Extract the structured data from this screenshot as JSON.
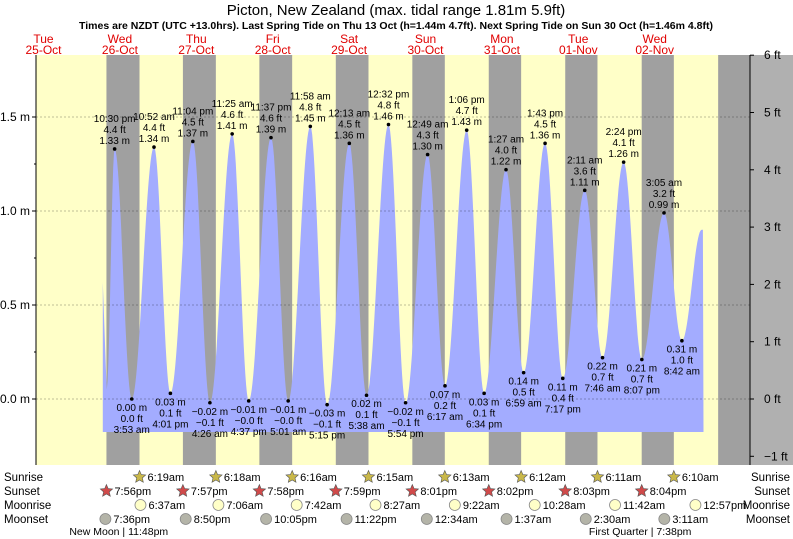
{
  "chart_data": {
    "type": "area",
    "title": "Picton, New Zealand (max. tidal range 1.81m 5.9ft)",
    "subtitle": "Times are NZDT (UTC +13.0hrs). Last Spring Tide on Thu 13 Oct (h=1.44m 4.7ft). Next Spring Tide on Sun 30 Oct (h=1.46m 4.8ft)",
    "days": [
      {
        "dow": "Tue",
        "date": "25-Oct"
      },
      {
        "dow": "Wed",
        "date": "26-Oct"
      },
      {
        "dow": "Thu",
        "date": "27-Oct"
      },
      {
        "dow": "Fri",
        "date": "28-Oct"
      },
      {
        "dow": "Sat",
        "date": "29-Oct"
      },
      {
        "dow": "Sun",
        "date": "30-Oct"
      },
      {
        "dow": "Mon",
        "date": "31-Oct"
      },
      {
        "dow": "Tue",
        "date": "01-Nov"
      },
      {
        "dow": "Wed",
        "date": "02-Nov"
      }
    ],
    "y_left": {
      "ticks": [
        "1.5 m",
        "1.0 m",
        "0.5 m",
        "0.0 m"
      ],
      "values": [
        1.5,
        1.0,
        0.5,
        0.0
      ],
      "ylim": [
        -0.31,
        1.81
      ]
    },
    "y_right": {
      "ticks": [
        "6 ft",
        "5 ft",
        "4 ft",
        "3 ft",
        "2 ft",
        "1 ft",
        "0 ft",
        "−1 ft"
      ],
      "values": [
        6,
        5,
        4,
        3,
        2,
        1,
        0,
        -1
      ]
    },
    "x_range_hours": [
      0,
      216
    ],
    "tides": [
      {
        "type": "high",
        "t": 22.5,
        "time": "10:30 pm",
        "ft": "4.4 ft",
        "m": "1.33 m",
        "h": 1.33
      },
      {
        "type": "low",
        "t": 27.88,
        "time": "3:53 am",
        "ft": "0.0 ft",
        "m": "0.00 m",
        "h": 0.0
      },
      {
        "type": "high",
        "t": 34.87,
        "time": "10:52 am",
        "ft": "4.4 ft",
        "m": "1.34 m",
        "h": 1.34
      },
      {
        "type": "low",
        "t": 40.02,
        "time": "4:01 pm",
        "ft": "0.1 ft",
        "m": "0.03 m",
        "h": 0.03
      },
      {
        "type": "high",
        "t": 47.07,
        "time": "11:04 pm",
        "ft": "4.5 ft",
        "m": "1.37 m",
        "h": 1.37
      },
      {
        "type": "low",
        "t": 52.43,
        "time": "4:26 am",
        "ft": "−0.1 ft",
        "m": "−0.02 m",
        "h": -0.02
      },
      {
        "type": "high",
        "t": 59.42,
        "time": "11:25 am",
        "ft": "4.6 ft",
        "m": "1.41 m",
        "h": 1.41
      },
      {
        "type": "low",
        "t": 64.62,
        "time": "4:37 pm",
        "ft": "−0.0 ft",
        "m": "−0.01 m",
        "h": -0.01
      },
      {
        "type": "high",
        "t": 71.62,
        "time": "11:37 pm",
        "ft": "4.6 ft",
        "m": "1.39 m",
        "h": 1.39
      },
      {
        "type": "low",
        "t": 77.02,
        "time": "5:01 am",
        "ft": "−0.0 ft",
        "m": "−0.01 m",
        "h": -0.01
      },
      {
        "type": "high",
        "t": 83.97,
        "time": "11:58 am",
        "ft": "4.8 ft",
        "m": "1.45 m",
        "h": 1.45
      },
      {
        "type": "low",
        "t": 89.25,
        "time": "5:15 pm",
        "ft": "−0.1 ft",
        "m": "−0.03 m",
        "h": -0.03
      },
      {
        "type": "high",
        "t": 96.22,
        "time": "12:13 am",
        "ft": "4.5 ft",
        "m": "1.36 m",
        "h": 1.36
      },
      {
        "type": "low",
        "t": 101.63,
        "time": "5:38 am",
        "ft": "0.1 ft",
        "m": "0.02 m",
        "h": 0.02
      },
      {
        "type": "high",
        "t": 108.53,
        "time": "12:32 pm",
        "ft": "4.8 ft",
        "m": "1.46 m",
        "h": 1.46
      },
      {
        "type": "low",
        "t": 113.9,
        "time": "5:54 pm",
        "ft": "−0.1 ft",
        "m": "−0.02 m",
        "h": -0.02
      },
      {
        "type": "high",
        "t": 120.82,
        "time": "12:49 am",
        "ft": "4.3 ft",
        "m": "1.30 m",
        "h": 1.3
      },
      {
        "type": "low",
        "t": 126.28,
        "time": "6:17 am",
        "ft": "0.2 ft",
        "m": "0.07 m",
        "h": 0.07
      },
      {
        "type": "high",
        "t": 133.1,
        "time": "1:06 pm",
        "ft": "4.7 ft",
        "m": "1.43 m",
        "h": 1.43
      },
      {
        "type": "low",
        "t": 138.57,
        "time": "6:34 pm",
        "ft": "0.1 ft",
        "m": "0.03 m",
        "h": 0.03
      },
      {
        "type": "high",
        "t": 145.45,
        "time": "1:27 am",
        "ft": "4.0 ft",
        "m": "1.22 m",
        "h": 1.22
      },
      {
        "type": "low",
        "t": 150.98,
        "time": "6:59 am",
        "ft": "0.5 ft",
        "m": "0.14 m",
        "h": 0.14
      },
      {
        "type": "high",
        "t": 157.72,
        "time": "1:43 pm",
        "ft": "4.5 ft",
        "m": "1.36 m",
        "h": 1.36
      },
      {
        "type": "low",
        "t": 163.28,
        "time": "7:17 pm",
        "ft": "0.4 ft",
        "m": "0.11 m",
        "h": 0.11
      },
      {
        "type": "high",
        "t": 170.18,
        "time": "2:11 am",
        "ft": "3.6 ft",
        "m": "1.11 m",
        "h": 1.11
      },
      {
        "type": "low",
        "t": 175.77,
        "time": "7:46 am",
        "ft": "0.7 ft",
        "m": "0.22 m",
        "h": 0.22
      },
      {
        "type": "high",
        "t": 182.4,
        "time": "2:24 pm",
        "ft": "4.1 ft",
        "m": "1.26 m",
        "h": 1.26
      },
      {
        "type": "low",
        "t": 188.12,
        "time": "8:07 pm",
        "ft": "0.7 ft",
        "m": "0.21 m",
        "h": 0.21
      },
      {
        "type": "high",
        "t": 195.08,
        "time": "3:05 am",
        "ft": "3.2 ft",
        "m": "0.99 m",
        "h": 0.99
      },
      {
        "type": "low",
        "t": 200.7,
        "time": "8:42 am",
        "ft": "1.0 ft",
        "m": "0.31 m",
        "h": 0.31
      }
    ],
    "sunrise": [
      {
        "t": 30.32,
        "label": "6:19am"
      },
      {
        "t": 54.3,
        "label": "6:18am"
      },
      {
        "t": 78.27,
        "label": "6:16am"
      },
      {
        "t": 102.25,
        "label": "6:15am"
      },
      {
        "t": 126.22,
        "label": "6:13am"
      },
      {
        "t": 150.2,
        "label": "6:12am"
      },
      {
        "t": 174.18,
        "label": "6:11am"
      },
      {
        "t": 198.17,
        "label": "6:10am"
      }
    ],
    "sunset": [
      {
        "t": 19.93,
        "label": "7:56pm"
      },
      {
        "t": 43.95,
        "label": "7:57pm"
      },
      {
        "t": 67.97,
        "label": "7:58pm"
      },
      {
        "t": 91.98,
        "label": "7:59pm"
      },
      {
        "t": 116.02,
        "label": "8:01pm"
      },
      {
        "t": 140.03,
        "label": "8:02pm"
      },
      {
        "t": 164.05,
        "label": "8:03pm"
      },
      {
        "t": 188.07,
        "label": "8:04pm"
      }
    ],
    "moonrise": [
      {
        "t": 30.62,
        "label": "6:37am"
      },
      {
        "t": 55.1,
        "label": "7:06am"
      },
      {
        "t": 79.7,
        "label": "7:42am"
      },
      {
        "t": 104.45,
        "label": "8:27am"
      },
      {
        "t": 129.37,
        "label": "9:22am"
      },
      {
        "t": 154.47,
        "label": "10:28am"
      },
      {
        "t": 179.7,
        "label": "11:42am"
      },
      {
        "t": 204.95,
        "label": "12:57pm"
      }
    ],
    "moonset": [
      {
        "t": 19.6,
        "label": "7:36pm"
      },
      {
        "t": 44.83,
        "label": "8:50pm"
      },
      {
        "t": 70.08,
        "label": "10:05pm"
      },
      {
        "t": 95.37,
        "label": "11:22pm"
      },
      {
        "t": 120.57,
        "label": "12:34am"
      },
      {
        "t": 145.62,
        "label": "1:37am"
      },
      {
        "t": 170.5,
        "label": "2:30am"
      },
      {
        "t": 195.18,
        "label": "3:11am"
      }
    ],
    "moon_phases": [
      {
        "t": 23.8,
        "label": "New Moon | 11:48pm"
      },
      {
        "t": 187.6,
        "label": "First Quarter | 7:38pm"
      }
    ],
    "row_labels": {
      "sunrise": "Sunrise",
      "sunset": "Sunset",
      "moonrise": "Moonrise",
      "moonset": "Moonset"
    }
  },
  "colors": {
    "day": "#ffffc8",
    "night": "#a0a0a0",
    "tide_fill": "#a3acff",
    "weekday": "#e00000",
    "right_panel": "#b0b0b0",
    "sun_star": "#c9b84a",
    "sunset_star": "#d04a4a",
    "moonrise": "#ffffc8",
    "moonset": "#b4b4a8"
  }
}
